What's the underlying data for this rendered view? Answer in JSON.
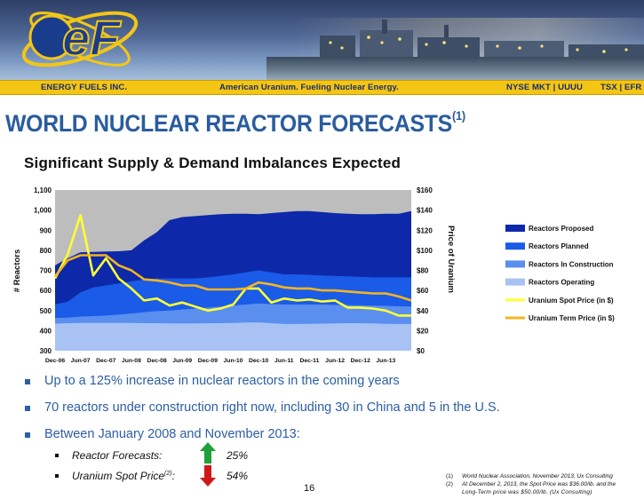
{
  "header": {
    "company": "ENERGY FUELS INC.",
    "tagline": "American Uranium. Fueling Nuclear Energy.",
    "ticker_nyse": "NYSE MKT | UUUU",
    "ticker_tsx": "TSX | EFR",
    "logo_text": "eF"
  },
  "colors": {
    "brand_blue": "#2a5c9e",
    "strip_yellow": "#f3c515",
    "proposed": "#0d28a8",
    "planned": "#1a5be8",
    "construction": "#5a8ff0",
    "operating": "#a8c2f4",
    "spot": "#ffff33",
    "term": "#f6b420",
    "plot_bg": "#bdbdbd",
    "up_arrow": "#1fa13a",
    "down_arrow": "#d01818"
  },
  "title": "WORLD NUCLEAR REACTOR FORECASTS",
  "title_sup": "(1)",
  "subtitle": "Significant Supply & Demand Imbalances Expected",
  "chart_data": {
    "type": "area",
    "x": [
      "Dec-06",
      "Mar-07",
      "Jun-07",
      "Sep-07",
      "Dec-07",
      "Mar-08",
      "Jun-08",
      "Sep-08",
      "Dec-08",
      "Mar-09",
      "Jun-09",
      "Sep-09",
      "Dec-09",
      "Mar-10",
      "Jun-10",
      "Sep-10",
      "Dec-10",
      "Mar-11",
      "Jun-11",
      "Sep-11",
      "Dec-11",
      "Mar-12",
      "Jun-12",
      "Sep-12",
      "Dec-12",
      "Mar-13",
      "Jun-13",
      "Sep-13",
      "Nov-13"
    ],
    "x_tick_labels": [
      "Dec-06",
      "Jun-07",
      "Dec-07",
      "Jun-08",
      "Dec-08",
      "Jun-09",
      "Dec-09",
      "Jun-10",
      "Dec-10",
      "Jun-11",
      "Dec-11",
      "Jun-12",
      "Dec-12",
      "Jun-13"
    ],
    "ylabel": "# Reactors",
    "y2label": "Price of Uranium",
    "ylim": [
      300,
      1100
    ],
    "y_ticks": [
      "300",
      "400",
      "500",
      "600",
      "700",
      "800",
      "900",
      "1,000",
      "1,100"
    ],
    "y2lim": [
      0,
      160
    ],
    "y2_ticks": [
      "$0",
      "$20",
      "$40",
      "$60",
      "$80",
      "$100",
      "$120",
      "$140",
      "$160"
    ],
    "stacked_series": [
      {
        "name": "Reactors Operating",
        "values": [
          435,
          437,
          438,
          438,
          438,
          438,
          438,
          437,
          437,
          436,
          436,
          436,
          437,
          437,
          438,
          440,
          441,
          437,
          433,
          433,
          434,
          435,
          436,
          437,
          437,
          436,
          434,
          433,
          433
        ]
      },
      {
        "name": "Reactors In Construction",
        "values": [
          463,
          465,
          470,
          472,
          475,
          480,
          485,
          492,
          497,
          500,
          505,
          510,
          515,
          520,
          525,
          530,
          535,
          532,
          530,
          530,
          530,
          530,
          528,
          527,
          526,
          525,
          523,
          521,
          520
        ]
      },
      {
        "name": "Reactors Planned",
        "values": [
          530,
          545,
          590,
          615,
          625,
          635,
          645,
          655,
          660,
          660,
          660,
          660,
          665,
          672,
          680,
          690,
          700,
          690,
          680,
          680,
          678,
          675,
          672,
          670,
          668,
          665,
          665,
          665,
          665
        ]
      },
      {
        "name": "Reactors Proposed",
        "values": [
          725,
          760,
          790,
          792,
          794,
          795,
          800,
          850,
          890,
          950,
          965,
          970,
          975,
          980,
          982,
          982,
          980,
          985,
          990,
          995,
          995,
          990,
          985,
          982,
          980,
          980,
          982,
          982,
          995
        ]
      }
    ],
    "price_series": [
      {
        "name": "Uranium Spot Price (in $)",
        "values": [
          72,
          96,
          135,
          75,
          92,
          72,
          62,
          50,
          52,
          45,
          48,
          44,
          40,
          42,
          46,
          62,
          62,
          48,
          52,
          50,
          51,
          49,
          50,
          43,
          43,
          42,
          40,
          35,
          35
        ]
      },
      {
        "name": "Uranium Term Price (in $)",
        "values": [
          74,
          90,
          95,
          95,
          95,
          85,
          80,
          71,
          70,
          68,
          65,
          65,
          61,
          61,
          61,
          62,
          68,
          66,
          63,
          62,
          62,
          60,
          60,
          59,
          58,
          57,
          57,
          54,
          50
        ]
      }
    ],
    "legend": [
      "Reactors Proposed",
      "Reactors Planned",
      "Reactors In Construction",
      "Reactors Operating",
      "Uranium Spot Price (in $)",
      "Uranium Term Price (in $)"
    ],
    "legend_position": "right",
    "grid": false
  },
  "bullets": [
    "Up to a 125% increase in nuclear reactors in the coming years",
    "70 reactors under construction right now, including 30 in China and 5 in the U.S.",
    "Between January 2008 and November 2013:"
  ],
  "sub_bullets": [
    {
      "label": "Reactor Forecasts:",
      "value": "25%",
      "arrow": "up-arrow"
    },
    {
      "label": "Uranium Spot Price",
      "label_sup": "(2)",
      "label_tail": ":",
      "value": "54%",
      "arrow": "down-arrow"
    }
  ],
  "page_number": "16",
  "footnotes": [
    {
      "num": "(1)",
      "line1": "World Nuclear Association, November 2013, Ux Consulting"
    },
    {
      "num": "(2)",
      "line1": "At December 2, 2013, the Spot Price was $36.00/lb. and the",
      "line2": "Long-Term price was $50.00/lb.  (Ux Consulting)"
    }
  ]
}
